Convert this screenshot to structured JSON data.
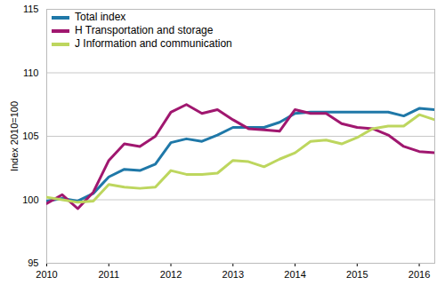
{
  "chart_data": {
    "type": "line",
    "y_label": "Index 2010=100",
    "x": [
      2010,
      2010.25,
      2010.5,
      2010.75,
      2011,
      2011.25,
      2011.5,
      2011.75,
      2012,
      2012.25,
      2012.5,
      2012.75,
      2013,
      2013.25,
      2013.5,
      2013.75,
      2014,
      2014.25,
      2014.5,
      2014.75,
      2015,
      2015.25,
      2015.5,
      2015.75,
      2016,
      2016.25
    ],
    "series": [
      {
        "name": "Total index",
        "color": "#1f78a8",
        "values": [
          99.9,
          100.1,
          99.9,
          100.5,
          101.8,
          102.4,
          102.3,
          102.8,
          104.5,
          104.8,
          104.6,
          105.1,
          105.7,
          105.7,
          105.7,
          106.1,
          106.8,
          106.9,
          106.9,
          106.9,
          106.9,
          106.9,
          106.9,
          106.6,
          107.2,
          107.1
        ]
      },
      {
        "name": "H Transportation and storage",
        "color": "#a0176f",
        "values": [
          99.7,
          100.4,
          99.3,
          100.6,
          103.1,
          104.4,
          104.2,
          105.0,
          106.9,
          107.5,
          106.8,
          107.1,
          106.3,
          105.6,
          105.5,
          105.4,
          107.1,
          106.8,
          106.8,
          106.0,
          105.7,
          105.6,
          105.1,
          104.2,
          103.8,
          103.7
        ]
      },
      {
        "name": "J Information and communication",
        "color": "#bdd65e",
        "values": [
          100.2,
          100.0,
          99.8,
          99.9,
          101.2,
          101.0,
          100.9,
          101.0,
          102.3,
          102.0,
          102.0,
          102.1,
          103.1,
          103.0,
          102.6,
          103.2,
          103.7,
          104.6,
          104.7,
          104.4,
          104.9,
          105.6,
          105.8,
          105.8,
          106.7,
          106.3
        ]
      }
    ],
    "xlim": [
      2010,
      2016.25
    ],
    "xticks": [
      2010,
      2011,
      2012,
      2013,
      2014,
      2015,
      2016
    ],
    "ylim": [
      95,
      115
    ],
    "yticks": [
      95,
      100,
      105,
      110,
      115
    ],
    "grid": true,
    "legend": "top-left"
  }
}
